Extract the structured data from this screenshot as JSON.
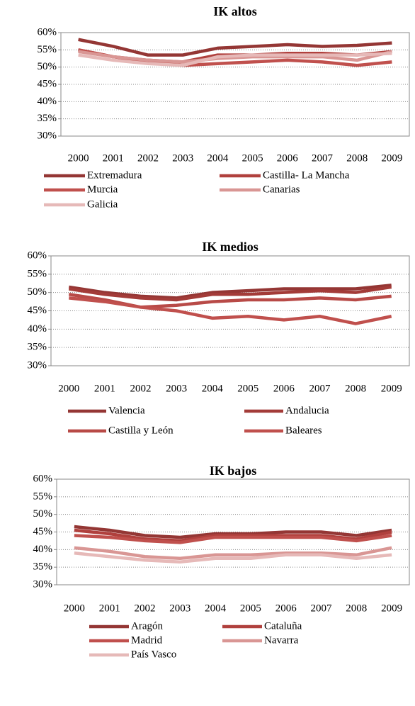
{
  "chart_data": [
    {
      "type": "line",
      "title": "IK altos",
      "categories": [
        "2000",
        "2001",
        "2002",
        "2003",
        "2004",
        "2005",
        "2006",
        "2007",
        "2008",
        "2009"
      ],
      "ylim": [
        30,
        60
      ],
      "yticks": [
        {
          "value": 30,
          "label": "30%"
        },
        {
          "value": 35,
          "label": "35%"
        },
        {
          "value": 40,
          "label": "40%"
        },
        {
          "value": 45,
          "label": "45%"
        },
        {
          "value": 50,
          "label": "50%"
        },
        {
          "value": 55,
          "label": "55%"
        },
        {
          "value": 60,
          "label": "60%"
        }
      ],
      "grid": true,
      "series": [
        {
          "name": "Extremadura",
          "color": "#943634",
          "values": [
            58,
            56,
            53.5,
            53.5,
            55.5,
            56,
            56.5,
            56,
            56.3,
            57
          ]
        },
        {
          "name": "Castilla- La Mancha",
          "color": "#b0403d",
          "values": [
            55,
            53,
            52,
            51.5,
            53.5,
            53.5,
            54,
            54,
            53.5,
            54.5
          ]
        },
        {
          "name": "Murcia",
          "color": "#c0504d",
          "values": [
            55,
            53,
            51.5,
            50.5,
            51,
            51.5,
            52,
            51.5,
            50.5,
            51.5
          ]
        },
        {
          "name": "Canarias",
          "color": "#d99694",
          "values": [
            54.5,
            53,
            52,
            51.5,
            52.5,
            53,
            53,
            53,
            52,
            54.5
          ]
        },
        {
          "name": "Galicia",
          "color": "#e6b9b8",
          "values": [
            53.5,
            52,
            51,
            50.5,
            53,
            53.5,
            53.5,
            53.5,
            53.5,
            54
          ]
        }
      ]
    },
    {
      "type": "line",
      "title": "IK medios",
      "categories": [
        "2000",
        "2001",
        "2002",
        "2003",
        "2004",
        "2005",
        "2006",
        "2007",
        "2008",
        "2009"
      ],
      "ylim": [
        30,
        60
      ],
      "yticks": [
        {
          "value": 30,
          "label": "30%"
        },
        {
          "value": 35,
          "label": "35%"
        },
        {
          "value": 40,
          "label": "40%"
        },
        {
          "value": 45,
          "label": "45%"
        },
        {
          "value": 50,
          "label": "50%"
        },
        {
          "value": 55,
          "label": "55%"
        },
        {
          "value": 60,
          "label": "60%"
        }
      ],
      "grid": true,
      "series": [
        {
          "name": "Valencia",
          "color": "#943634",
          "values": [
            51.5,
            50,
            49,
            48.5,
            50,
            50.5,
            51,
            51,
            51,
            52
          ]
        },
        {
          "name": "Andalucia",
          "color": "#a33b38",
          "values": [
            51,
            49.5,
            48.5,
            48,
            49.5,
            49.5,
            50,
            50.5,
            50,
            51.5
          ]
        },
        {
          "name": "Castilla y León",
          "color": "#b84a47",
          "values": [
            49.5,
            48,
            46,
            46.5,
            47.5,
            48,
            48,
            48.5,
            48,
            49
          ]
        },
        {
          "name": "Baleares",
          "color": "#c0504d",
          "values": [
            48.5,
            47.5,
            46,
            45,
            43,
            43.5,
            42.5,
            43.5,
            41.5,
            43.5
          ]
        }
      ]
    },
    {
      "type": "line",
      "title": "IK bajos",
      "categories": [
        "2000",
        "2001",
        "2002",
        "2003",
        "2004",
        "2005",
        "2006",
        "2007",
        "2008",
        "2009"
      ],
      "ylim": [
        30,
        60
      ],
      "yticks": [
        {
          "value": 30,
          "label": "30%"
        },
        {
          "value": 35,
          "label": "35%"
        },
        {
          "value": 40,
          "label": "40%"
        },
        {
          "value": 45,
          "label": "45%"
        },
        {
          "value": 50,
          "label": "50%"
        },
        {
          "value": 55,
          "label": "55%"
        },
        {
          "value": 60,
          "label": "60%"
        }
      ],
      "grid": true,
      "series": [
        {
          "name": "Aragón",
          "color": "#943634",
          "values": [
            46.5,
            45.5,
            44,
            43.5,
            44.5,
            44.5,
            45,
            45,
            44,
            45.5
          ]
        },
        {
          "name": "Cataluña",
          "color": "#b0403d",
          "values": [
            45.5,
            44.5,
            43,
            42.5,
            44,
            44,
            44,
            44,
            43,
            45
          ]
        },
        {
          "name": "Madrid",
          "color": "#c0504d",
          "values": [
            44,
            43.5,
            42.5,
            42,
            43.5,
            43.5,
            43.5,
            43.5,
            42.5,
            44
          ]
        },
        {
          "name": "Navarra",
          "color": "#d99694",
          "values": [
            40.5,
            39.5,
            38,
            37.5,
            38.5,
            38.5,
            39,
            39,
            38.5,
            40.5
          ]
        },
        {
          "name": "País Vasco",
          "color": "#e6b9b8",
          "values": [
            39,
            38,
            37,
            36.5,
            37.5,
            37.5,
            38.5,
            38.5,
            37.5,
            38.5
          ]
        }
      ]
    }
  ]
}
